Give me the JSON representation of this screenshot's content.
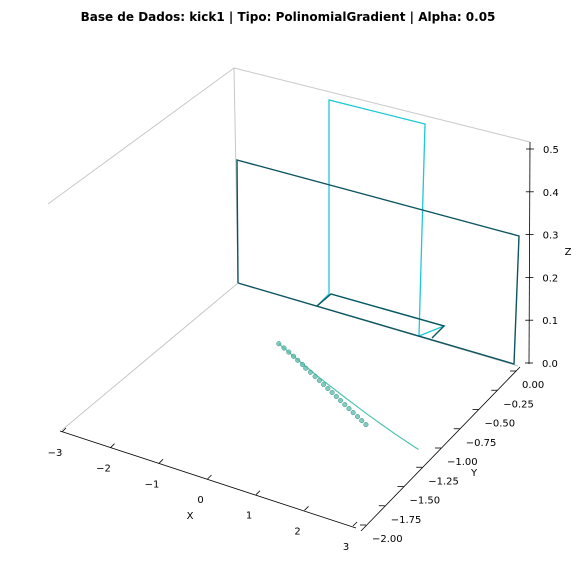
{
  "chart_data": {
    "type": "line",
    "projection": "3d",
    "title": "Base de Dados: kick1 | Tipo: PolinomialGradient | Alpha: 0.05",
    "xlabel": "X",
    "ylabel": "Y",
    "zlabel": "Z",
    "xlim": [
      -3,
      3
    ],
    "ylim": [
      -2.1,
      0.05
    ],
    "zlim": [
      0,
      0.5
    ],
    "x_ticks": [
      "−3",
      "−2",
      "−1",
      "0",
      "1",
      "2",
      "3"
    ],
    "y_ticks": [
      "0.00",
      "−0.25",
      "−0.50",
      "−0.75",
      "−1.00",
      "−1.25",
      "−1.50",
      "−1.75",
      "−2.00"
    ],
    "z_ticks": [
      "0.0",
      "0.1",
      "0.2",
      "0.3",
      "0.4",
      "0.5"
    ],
    "grid": false,
    "colors": {
      "points": "#5bb8a8",
      "curve": "#4fc4b0",
      "frame_dark": "#0c5560",
      "frame_light": "#1ec8d8",
      "pane_edge": "#c8c8c8"
    },
    "series": [
      {
        "kind": "scatter",
        "points": [
          [
            -0.55,
            -0.9
          ],
          [
            -0.52,
            -0.95
          ],
          [
            -0.5,
            -1.0
          ],
          [
            -0.48,
            -1.05
          ],
          [
            -0.47,
            -1.1
          ],
          [
            -0.45,
            -1.15
          ],
          [
            -0.46,
            -1.2
          ],
          [
            -0.44,
            -1.25
          ],
          [
            -0.42,
            -1.3
          ],
          [
            -0.41,
            -1.35
          ],
          [
            -0.4,
            -1.4
          ],
          [
            -0.39,
            -1.45
          ],
          [
            -0.38,
            -1.5
          ],
          [
            -0.37,
            -1.55
          ],
          [
            -0.36,
            -1.6
          ],
          [
            -0.35,
            -1.65
          ],
          [
            -0.34,
            -1.7
          ],
          [
            -0.33,
            -1.75
          ],
          [
            -0.32,
            -1.8
          ],
          [
            -0.31,
            -1.85
          ],
          [
            -0.3,
            -1.9
          ]
        ]
      },
      {
        "kind": "curve",
        "points": [
          [
            -0.55,
            -0.9
          ],
          [
            -0.45,
            -1.1
          ],
          [
            -0.32,
            -1.3
          ],
          [
            -0.15,
            -1.5
          ],
          [
            0.05,
            -1.7
          ],
          [
            0.3,
            -1.9
          ],
          [
            0.55,
            -2.05
          ]
        ]
      }
    ]
  }
}
